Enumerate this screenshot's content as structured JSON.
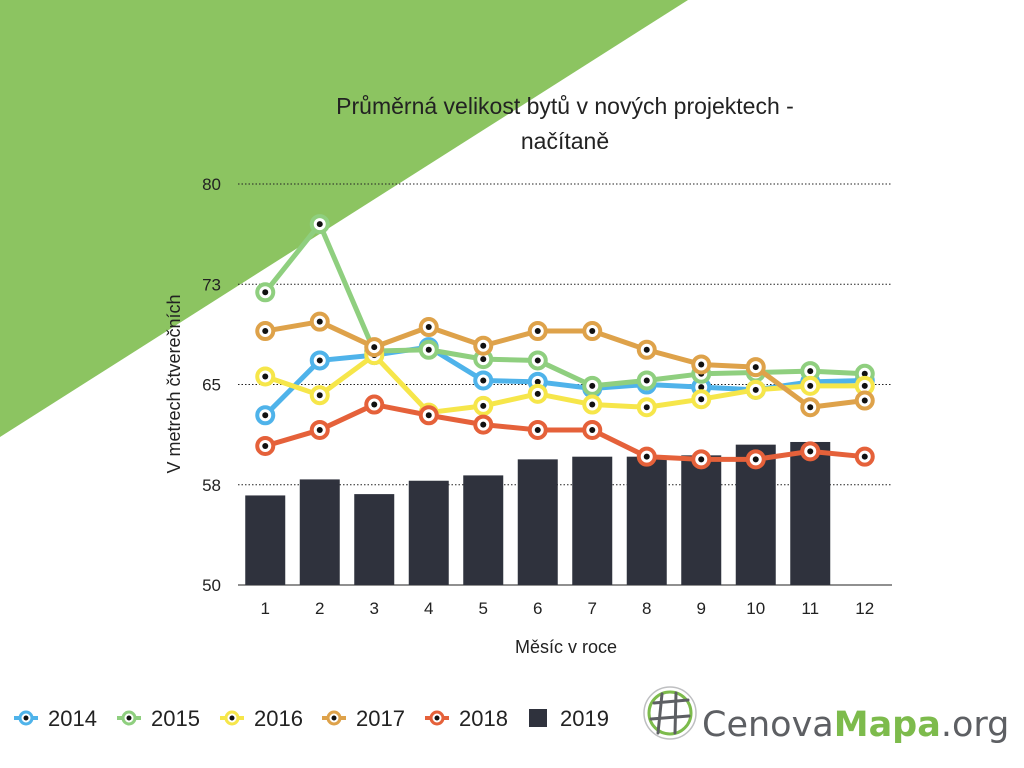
{
  "colors": {
    "corner_green": "#8cc461",
    "bar": "#2f323d",
    "logo_gray": "#5d5f63",
    "logo_green": "#7dbb4c"
  },
  "chart_data": {
    "type": "bar+line",
    "title_lines": [
      "Průměrná velikost bytů v nových projektech -",
      "načítaně"
    ],
    "xlabel": "Měsíc v roce",
    "ylabel": "V metrech čtverečních",
    "y_ticks": [
      "80",
      "73",
      "65",
      "58",
      "50"
    ],
    "x_ticks": [
      "1",
      "2",
      "3",
      "4",
      "5",
      "6",
      "7",
      "8",
      "9",
      "10",
      "11",
      "12"
    ],
    "ylim": [
      50,
      80
    ],
    "grid": "horizontal dotted",
    "legend_position": "bottom-left",
    "series": [
      {
        "name": "2014",
        "kind": "line",
        "color": "#4fb3ea",
        "values": [
          62.7,
          66.8,
          67.2,
          67.8,
          65.3,
          65.2,
          64.7,
          65.0,
          64.8,
          64.6,
          65.2,
          65.3
        ]
      },
      {
        "name": "2015",
        "kind": "line",
        "color": "#8fcf7f",
        "values": [
          71.9,
          77.0,
          67.5,
          67.6,
          66.9,
          66.8,
          64.9,
          65.3,
          65.8,
          65.9,
          66.0,
          65.8
        ]
      },
      {
        "name": "2016",
        "kind": "line",
        "color": "#f6e64a",
        "values": [
          65.6,
          64.2,
          67.2,
          62.9,
          63.4,
          64.3,
          63.5,
          63.3,
          63.9,
          64.6,
          64.9,
          64.9
        ]
      },
      {
        "name": "2017",
        "kind": "line",
        "color": "#dea24a",
        "values": [
          69.0,
          69.7,
          67.8,
          69.3,
          67.9,
          69.0,
          69.0,
          67.6,
          66.5,
          66.3,
          63.3,
          63.8
        ]
      },
      {
        "name": "2018",
        "kind": "line",
        "color": "#e5613a",
        "values": [
          60.4,
          61.6,
          63.5,
          62.7,
          62.0,
          61.6,
          61.6,
          59.6,
          59.4,
          59.4,
          60.0,
          59.6
        ]
      },
      {
        "name": "2019",
        "kind": "bar",
        "color": "#2f323d",
        "values": [
          56.7,
          57.9,
          56.8,
          57.8,
          58.2,
          59.4,
          59.6,
          59.6,
          59.7,
          60.5,
          60.7
        ]
      }
    ]
  },
  "legend": {
    "items": [
      {
        "label": "2014",
        "color": "#4fb3ea",
        "kind": "line"
      },
      {
        "label": "2015",
        "color": "#8fcf7f",
        "kind": "line"
      },
      {
        "label": "2016",
        "color": "#f6e64a",
        "kind": "line"
      },
      {
        "label": "2017",
        "color": "#dea24a",
        "kind": "line"
      },
      {
        "label": "2018",
        "color": "#e5613a",
        "kind": "line"
      },
      {
        "label": "2019",
        "color": "#2f323d",
        "kind": "bar"
      }
    ]
  },
  "logo": {
    "part1": "Cenova",
    "part2": "Mapa",
    "part3": ".org",
    "icon": "globe-grid-icon"
  }
}
